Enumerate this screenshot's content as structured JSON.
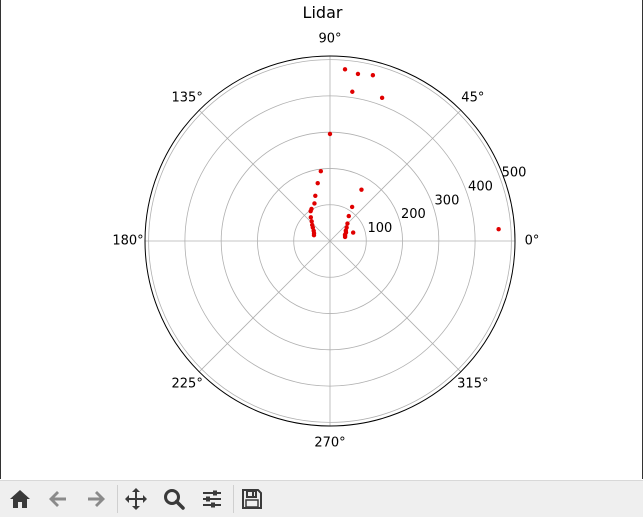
{
  "chart_data": {
    "type": "scatter",
    "projection": "polar",
    "title": "Lidar",
    "theta_ticks": [
      "0°",
      "45°",
      "90°",
      "135°",
      "180°",
      "225°",
      "270°",
      "315°"
    ],
    "r_ticks": [
      "100",
      "200",
      "300",
      "400",
      "500"
    ],
    "r_range": [
      0,
      510
    ],
    "grid": true,
    "marker_color": "#e00000",
    "points": [
      {
        "theta_deg": 85.0,
        "r": 475
      },
      {
        "theta_deg": 80.5,
        "r": 467
      },
      {
        "theta_deg": 75.5,
        "r": 472
      },
      {
        "theta_deg": 70.0,
        "r": 420
      },
      {
        "theta_deg": 81.5,
        "r": 416
      },
      {
        "theta_deg": 90.0,
        "r": 295
      },
      {
        "theta_deg": 58.5,
        "r": 166
      },
      {
        "theta_deg": 57.0,
        "r": 112
      },
      {
        "theta_deg": 53.0,
        "r": 86
      },
      {
        "theta_deg": 97.5,
        "r": 194
      },
      {
        "theta_deg": 102.0,
        "r": 163
      },
      {
        "theta_deg": 108.0,
        "r": 131
      },
      {
        "theta_deg": 112.5,
        "r": 112
      },
      {
        "theta_deg": 120.0,
        "r": 102
      },
      {
        "theta_deg": 123.0,
        "r": 98
      },
      {
        "theta_deg": 129.0,
        "r": 84
      },
      {
        "theta_deg": 133.0,
        "r": 74
      },
      {
        "theta_deg": 138.0,
        "r": 66
      },
      {
        "theta_deg": 142.0,
        "r": 60
      },
      {
        "theta_deg": 148.0,
        "r": 53
      },
      {
        "theta_deg": 154.0,
        "r": 49
      },
      {
        "theta_deg": 160.0,
        "r": 47
      },
      {
        "theta_deg": 45.0,
        "r": 68
      },
      {
        "theta_deg": 39.0,
        "r": 59
      },
      {
        "theta_deg": 33.0,
        "r": 52
      },
      {
        "theta_deg": 28.0,
        "r": 50
      },
      {
        "theta_deg": 23.0,
        "r": 45
      },
      {
        "theta_deg": 19.0,
        "r": 44
      },
      {
        "theta_deg": 15.0,
        "r": 43
      },
      {
        "theta_deg": 20.0,
        "r": 68
      },
      {
        "theta_deg": 4.0,
        "r": 466
      }
    ]
  },
  "toolbar": {
    "tools": [
      {
        "name": "home-icon"
      },
      {
        "name": "back-arrow-icon"
      },
      {
        "name": "forward-arrow-icon"
      },
      {
        "name": "pan-move-icon"
      },
      {
        "name": "zoom-magnifier-icon"
      },
      {
        "name": "configure-subplots-icon"
      },
      {
        "name": "save-floppy-icon"
      }
    ]
  }
}
